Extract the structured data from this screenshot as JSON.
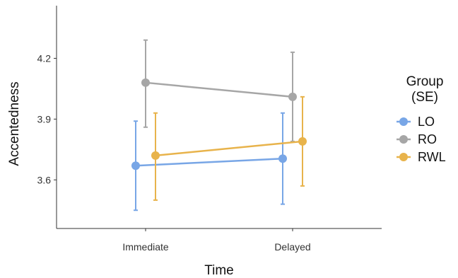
{
  "chart_data": {
    "type": "line",
    "categories": [
      "Immediate",
      "Delayed"
    ],
    "xlabel": "Time",
    "ylabel": "Accentedness",
    "ylim": [
      3.36,
      4.46
    ],
    "yticks": [
      3.6,
      3.9,
      4.2
    ],
    "ytick_labels": [
      "3.6",
      "3.9",
      "4.2"
    ],
    "grid": false,
    "legend": {
      "title_lines": [
        "Group",
        "(SE)"
      ],
      "placement": "right"
    },
    "series": [
      {
        "name": "LO",
        "color": "#78a6e6",
        "values": [
          3.67,
          3.705
        ],
        "lower": [
          3.45,
          3.48
        ],
        "upper": [
          3.89,
          3.93
        ]
      },
      {
        "name": "RO",
        "color": "#a6a6a6",
        "values": [
          4.08,
          4.01
        ],
        "lower": [
          3.86,
          3.79
        ],
        "upper": [
          4.29,
          4.23
        ]
      },
      {
        "name": "RWL",
        "color": "#e8b34b",
        "values": [
          3.72,
          3.79
        ],
        "lower": [
          3.5,
          3.57
        ],
        "upper": [
          3.93,
          4.01
        ]
      }
    ]
  }
}
